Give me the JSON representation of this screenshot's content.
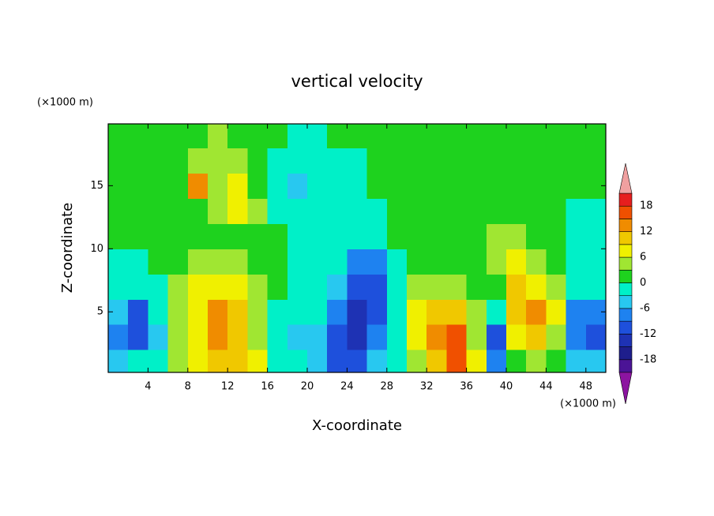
{
  "chart_data": {
    "type": "contour",
    "title": "vertical velocity",
    "xlabel": "X-coordinate",
    "ylabel": "Z-coordinate",
    "x_unit": "(×1000 m)",
    "y_unit": "(×1000 m)",
    "xlim": [
      0,
      50
    ],
    "ylim": [
      0.2,
      19.9
    ],
    "xticks": [
      4,
      8,
      12,
      16,
      20,
      24,
      28,
      32,
      36,
      40,
      44,
      48
    ],
    "yticks": [
      5,
      10,
      15
    ],
    "x": [
      1,
      3,
      5,
      7,
      9,
      11,
      13,
      15,
      17,
      19,
      21,
      23,
      25,
      27,
      29,
      31,
      33,
      35,
      37,
      39,
      41,
      43,
      45,
      47,
      49
    ],
    "y": [
      1,
      3,
      5,
      7,
      9,
      11,
      13,
      15,
      17,
      19
    ],
    "z": [
      [
        -6,
        -3,
        -3,
        3,
        6,
        9,
        9,
        6,
        -3,
        -3,
        -6,
        -12,
        -12,
        -6,
        -3,
        3,
        9,
        15,
        6,
        -9,
        0,
        3,
        0,
        -6,
        -6
      ],
      [
        -9,
        -12,
        -6,
        3,
        6,
        12,
        9,
        3,
        -3,
        -6,
        -6,
        -12,
        -15,
        -9,
        -3,
        6,
        12,
        15,
        3,
        -12,
        6,
        9,
        3,
        -9,
        -12
      ],
      [
        -6,
        -12,
        -3,
        3,
        6,
        12,
        9,
        3,
        -3,
        -3,
        -3,
        -9,
        -15,
        -12,
        -3,
        6,
        9,
        9,
        3,
        -3,
        9,
        12,
        6,
        -9,
        -9
      ],
      [
        -3,
        -3,
        -3,
        3,
        6,
        6,
        6,
        3,
        0,
        -3,
        -3,
        -6,
        -12,
        -12,
        -3,
        3,
        3,
        3,
        0,
        0,
        9,
        6,
        3,
        -3,
        -3
      ],
      [
        -3,
        -3,
        0,
        0,
        3,
        3,
        3,
        0,
        0,
        -3,
        -3,
        -3,
        -9,
        -9,
        -3,
        0,
        0,
        0,
        0,
        3,
        6,
        3,
        0,
        -3,
        -3
      ],
      [
        0,
        0,
        0,
        0,
        0,
        0,
        0,
        0,
        0,
        -3,
        -3,
        -3,
        -3,
        -3,
        0,
        0,
        0,
        0,
        0,
        3,
        3,
        0,
        0,
        -3,
        -3
      ],
      [
        0,
        0,
        0,
        0,
        0,
        3,
        6,
        3,
        -3,
        -3,
        -3,
        -3,
        -3,
        -3,
        0,
        0,
        0,
        0,
        0,
        0,
        0,
        0,
        0,
        -3,
        -3
      ],
      [
        0,
        0,
        0,
        0,
        12,
        3,
        6,
        0,
        -3,
        -6,
        -3,
        -3,
        -3,
        0,
        0,
        0,
        0,
        0,
        0,
        0,
        0,
        0,
        0,
        0,
        0
      ],
      [
        0,
        0,
        0,
        0,
        3,
        3,
        3,
        0,
        -3,
        -3,
        -3,
        -3,
        -3,
        0,
        0,
        0,
        0,
        0,
        0,
        0,
        0,
        0,
        0,
        0,
        0
      ],
      [
        0,
        0,
        0,
        0,
        0,
        3,
        0,
        0,
        0,
        -3,
        -3,
        0,
        0,
        0,
        0,
        0,
        0,
        0,
        0,
        0,
        0,
        0,
        0,
        0,
        0
      ]
    ],
    "levels": [
      -21,
      -18,
      -15,
      -12,
      -9,
      -6,
      -3,
      0,
      3,
      6,
      9,
      12,
      15,
      18,
      21
    ],
    "colors": [
      "#4b1496",
      "#1e1e8c",
      "#1e32b4",
      "#1e50dc",
      "#1e82f0",
      "#28c8f0",
      "#00f0c8",
      "#1ed21e",
      "#a0e632",
      "#f0f000",
      "#f0c800",
      "#f08c00",
      "#f05000",
      "#e61e1e"
    ],
    "under_color": "#8c14a0",
    "over_color": "#f0a0a0",
    "colorbar_ticks": [
      -18,
      -12,
      -6,
      0,
      6,
      12,
      18
    ]
  }
}
